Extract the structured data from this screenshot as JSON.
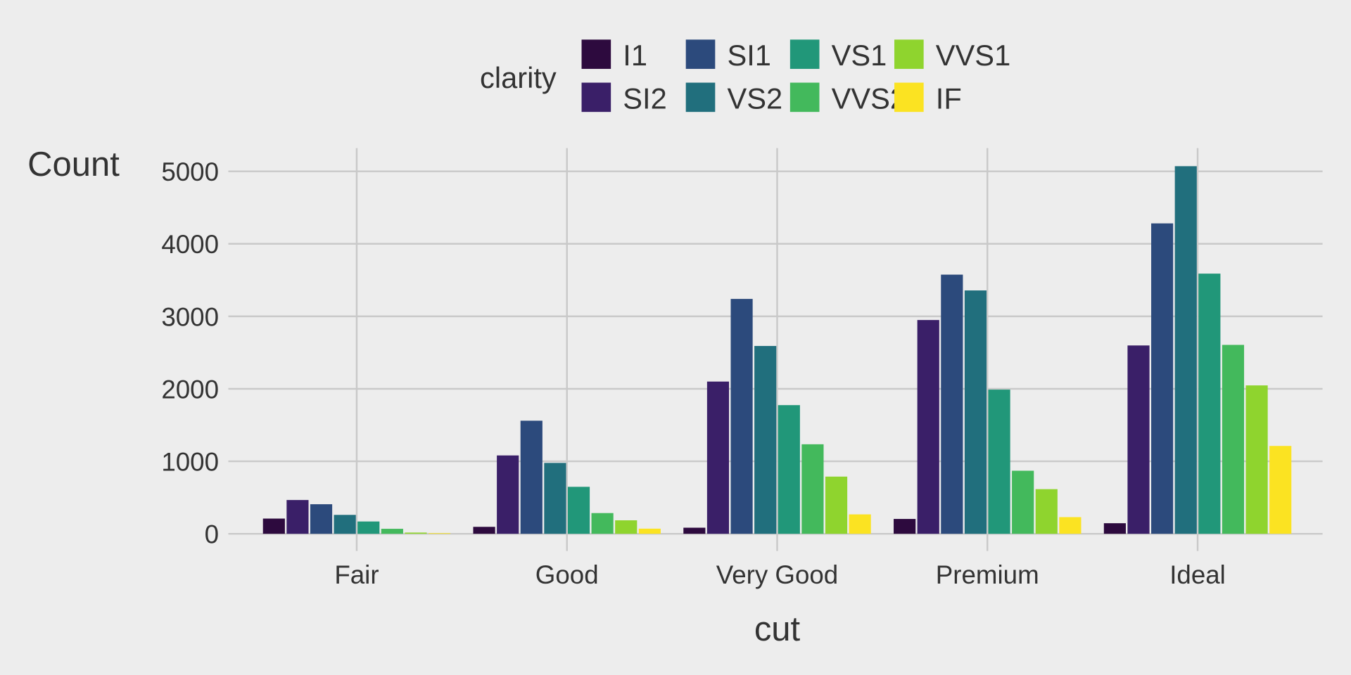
{
  "chart_data": {
    "type": "bar",
    "title": "",
    "xlabel": "cut",
    "ylabel": "Count",
    "ylim": [
      0,
      5300
    ],
    "yticks": [
      0,
      1000,
      2000,
      3000,
      4000,
      5000
    ],
    "grid": true,
    "legend": {
      "title": "clarity",
      "placement": "top"
    },
    "categories": [
      "Fair",
      "Good",
      "Very Good",
      "Premium",
      "Ideal"
    ],
    "series": [
      {
        "name": "I1",
        "color": "#2D0A3E",
        "values": [
          210,
          96,
          84,
          205,
          146
        ]
      },
      {
        "name": "SI2",
        "color": "#3A1F68",
        "values": [
          466,
          1081,
          2100,
          2949,
          2598
        ]
      },
      {
        "name": "SI1",
        "color": "#2C4A7C",
        "values": [
          408,
          1560,
          3240,
          3575,
          4282
        ]
      },
      {
        "name": "VS2",
        "color": "#216F7D",
        "values": [
          261,
          978,
          2591,
          3357,
          5071
        ]
      },
      {
        "name": "VS1",
        "color": "#219779",
        "values": [
          170,
          648,
          1775,
          1989,
          3589
        ]
      },
      {
        "name": "VVS2",
        "color": "#43B95C",
        "values": [
          69,
          286,
          1235,
          870,
          2606
        ]
      },
      {
        "name": "VVS1",
        "color": "#8FD42E",
        "values": [
          17,
          186,
          789,
          616,
          2047
        ]
      },
      {
        "name": "IF",
        "color": "#FBE322",
        "values": [
          9,
          71,
          268,
          230,
          1212
        ]
      }
    ]
  }
}
